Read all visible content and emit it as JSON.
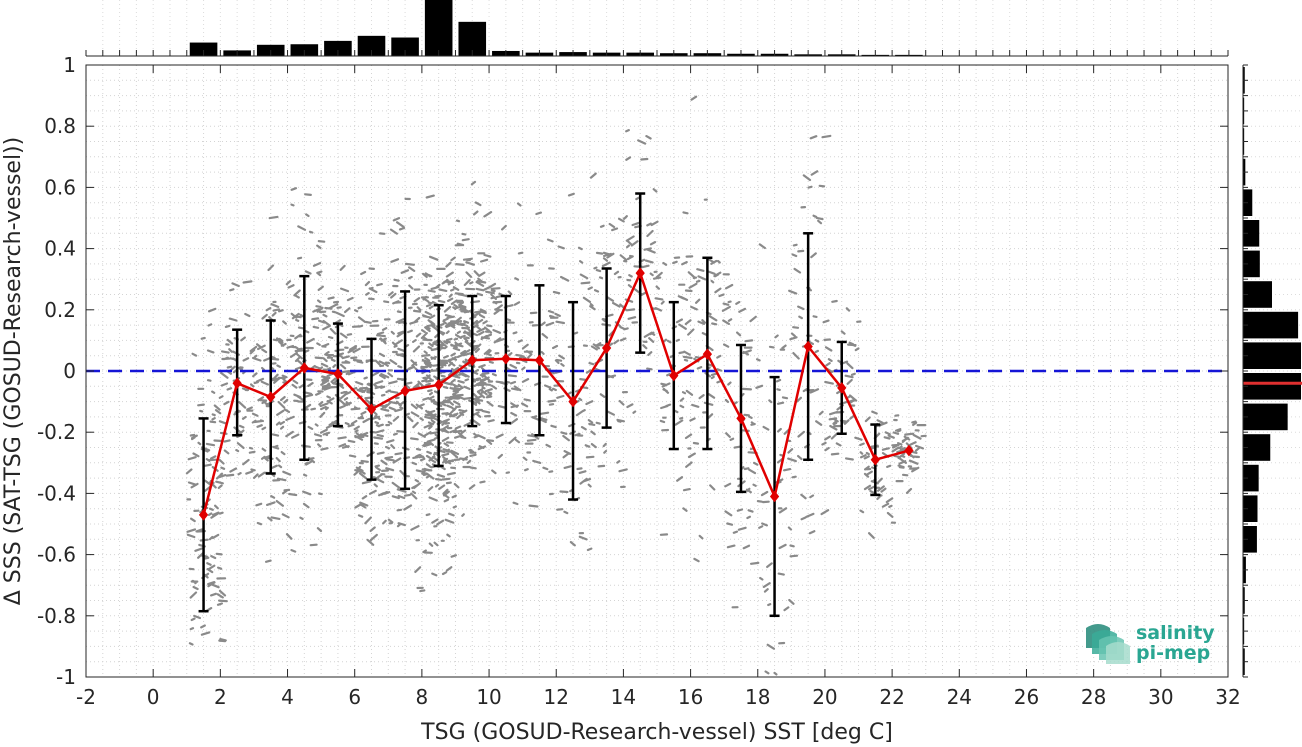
{
  "chart_data": {
    "type": "scatter",
    "xlabel": "TSG (GOSUD-Research-vessel) SST [deg C]",
    "ylabel": "Δ SSS (SAT-TSG (GOSUD-Research-vessel))",
    "xlim": [
      -2,
      32
    ],
    "ylim": [
      -1,
      1
    ],
    "xticks": [
      -2,
      0,
      2,
      4,
      6,
      8,
      10,
      12,
      14,
      16,
      18,
      20,
      22,
      24,
      26,
      28,
      30,
      32
    ],
    "yticks": [
      -1,
      -0.8,
      -0.6,
      -0.4,
      -0.2,
      0,
      0.2,
      0.4,
      0.6,
      0.8,
      1
    ],
    "xtick_labels": [
      "-2",
      "0",
      "2",
      "4",
      "6",
      "8",
      "10",
      "12",
      "14",
      "16",
      "18",
      "20",
      "22",
      "24",
      "26",
      "28",
      "30",
      "32"
    ],
    "ytick_labels": [
      "-1",
      "-0.8",
      "-0.6",
      "-0.4",
      "-0.2",
      "0",
      "0.2",
      "0.4",
      "0.6",
      "0.8",
      "1"
    ],
    "grid": true,
    "reference_line": {
      "y": 0,
      "style": "dashed",
      "color": "#1515d6"
    },
    "binned_mean": {
      "x": [
        1.5,
        2.5,
        3.5,
        4.5,
        5.5,
        6.5,
        7.5,
        8.5,
        9.5,
        10.5,
        11.5,
        12.5,
        13.5,
        14.5,
        15.5,
        16.5,
        17.5,
        18.5,
        19.5,
        20.5,
        21.5,
        22.5
      ],
      "mean": [
        -0.47,
        -0.04,
        -0.085,
        0.01,
        -0.01,
        -0.125,
        -0.065,
        -0.045,
        0.035,
        0.04,
        0.035,
        -0.1,
        0.075,
        0.32,
        -0.015,
        0.055,
        -0.155,
        -0.41,
        0.08,
        -0.055,
        -0.29,
        -0.26
      ],
      "lower": [
        -0.785,
        -0.21,
        -0.335,
        -0.29,
        -0.18,
        -0.355,
        -0.385,
        -0.31,
        -0.18,
        -0.17,
        -0.21,
        -0.42,
        -0.185,
        0.06,
        -0.255,
        -0.255,
        -0.395,
        -0.8,
        -0.29,
        -0.205,
        -0.405,
        null
      ],
      "upper": [
        -0.155,
        0.135,
        0.165,
        0.31,
        0.155,
        0.105,
        0.26,
        0.215,
        0.245,
        0.245,
        0.28,
        0.225,
        0.335,
        0.58,
        0.225,
        0.37,
        0.085,
        -0.02,
        0.45,
        0.095,
        -0.175,
        null
      ],
      "color": "#e00000",
      "errorbar_color": "#000000"
    },
    "top_histogram": {
      "bins": [
        1.5,
        2.5,
        3.5,
        4.5,
        5.5,
        6.5,
        7.5,
        8.5,
        9.5,
        10.5,
        11.5,
        12.5,
        13.5,
        14.5,
        15.5,
        16.5,
        17.5,
        18.5,
        19.5,
        20.5,
        21.5,
        22.5
      ],
      "relative_counts": [
        0.24,
        0.1,
        0.2,
        0.21,
        0.27,
        0.36,
        0.33,
        1.0,
        0.61,
        0.09,
        0.06,
        0.07,
        0.06,
        0.06,
        0.05,
        0.05,
        0.04,
        0.04,
        0.03,
        0.03,
        0.02,
        0.02
      ]
    },
    "right_histogram": {
      "bins": [
        -0.95,
        -0.85,
        -0.75,
        -0.65,
        -0.55,
        -0.45,
        -0.35,
        -0.25,
        -0.15,
        -0.05,
        0.05,
        0.15,
        0.25,
        0.35,
        0.45,
        0.55,
        0.65,
        0.75,
        0.85,
        0.95
      ],
      "relative_counts": [
        0.03,
        0.02,
        0.03,
        0.05,
        0.24,
        0.25,
        0.27,
        0.47,
        0.77,
        1.0,
        1.0,
        0.95,
        0.5,
        0.29,
        0.28,
        0.16,
        0.04,
        0.02,
        0.02,
        0.03
      ],
      "mean_line_y": -0.04,
      "mean_line_color": "#e03030"
    },
    "scatter_color": "#8a8a8a"
  },
  "logo": {
    "line1": "salinity",
    "line2": "pi-mep"
  }
}
